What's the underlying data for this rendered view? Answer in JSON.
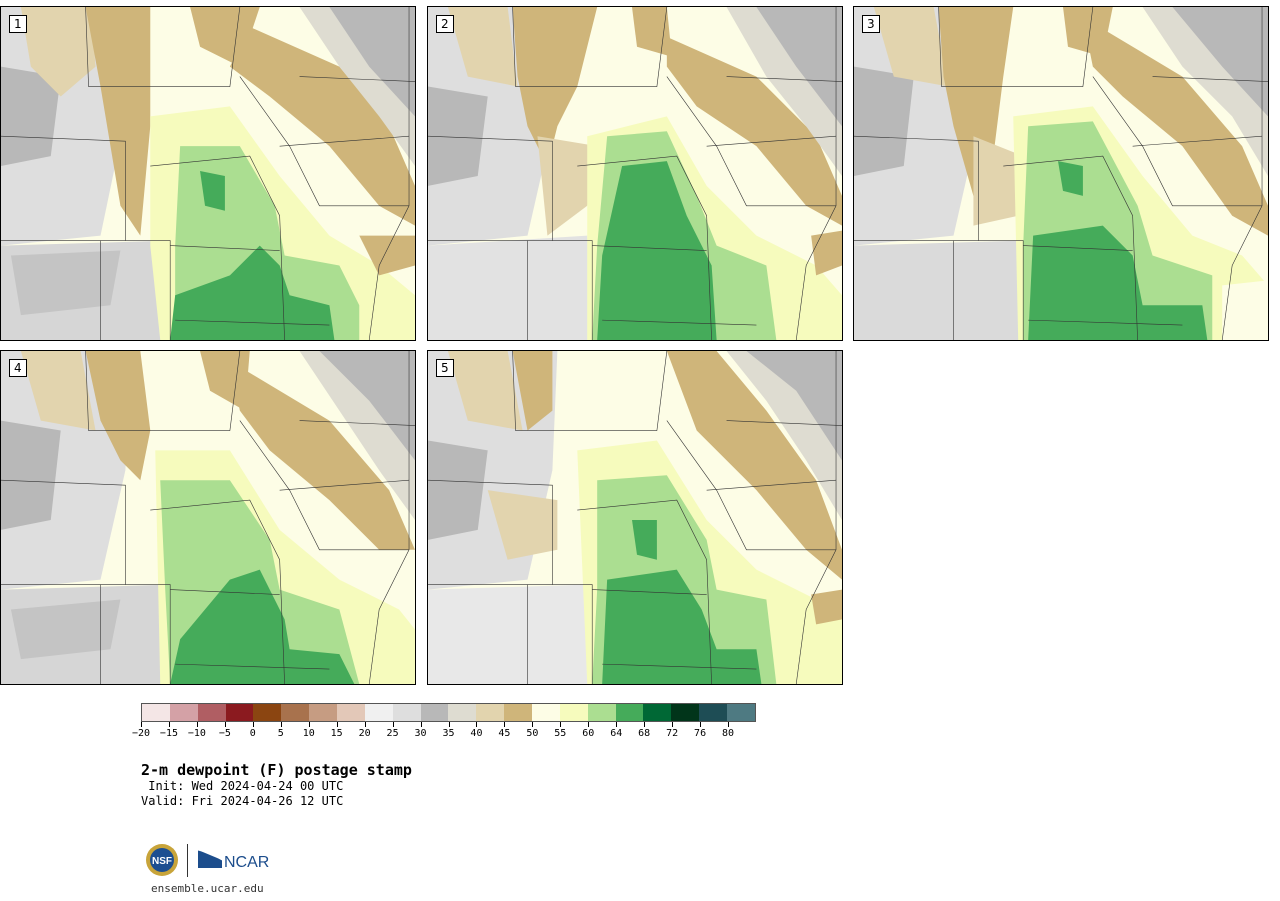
{
  "panels": [
    {
      "label": "1"
    },
    {
      "label": "2"
    },
    {
      "label": "3"
    },
    {
      "label": "4"
    },
    {
      "label": "5"
    }
  ],
  "colorbar": {
    "colors": [
      "#f4e6e6",
      "#d4a1a6",
      "#b05e63",
      "#8b1a1f",
      "#8b4511",
      "#a8724d",
      "#c69c82",
      "#e3c8b8",
      "#f0f0f0",
      "#dedede",
      "#b8b8b8",
      "#dedcd1",
      "#e2d4ae",
      "#cfb57a",
      "#fdfde6",
      "#f6fbbd",
      "#abde91",
      "#45ab5a",
      "#006835",
      "#01351a",
      "#1e4d55",
      "#4e7a82"
    ],
    "tick_labels": [
      "−20",
      "−15",
      "−10",
      "−5",
      "0",
      "5",
      "10",
      "15",
      "20",
      "25",
      "30",
      "35",
      "40",
      "45",
      "50",
      "55",
      "60",
      "64",
      "68",
      "72",
      "76",
      "80"
    ]
  },
  "title": "2-m dewpoint (F) postage stamp",
  "init": " Init: Wed 2024-04-24 00 UTC",
  "valid": "Valid: Fri 2024-04-26 12 UTC",
  "logos": {
    "nsf": "NSF",
    "ncar": "NCAR"
  },
  "url": "ensemble.ucar.edu"
}
